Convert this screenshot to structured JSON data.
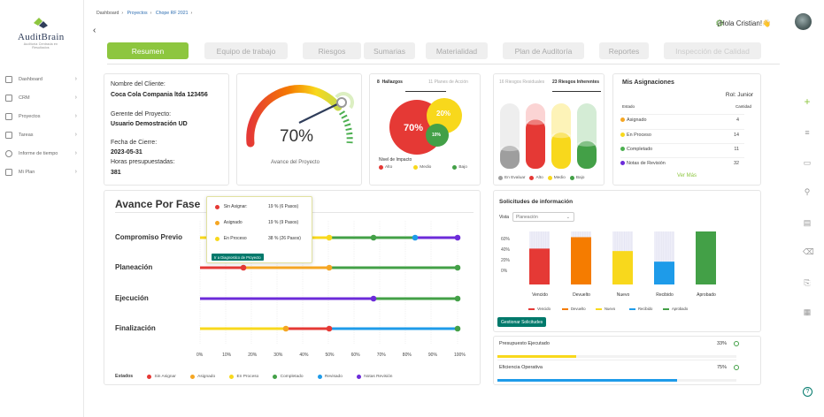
{
  "app": {
    "logo_name": "AuditBrain",
    "logo_tag": "Auditoría Centrada en Resultados"
  },
  "sidebar": {
    "items": [
      {
        "label": "Dashboard"
      },
      {
        "label": "CRM"
      },
      {
        "label": "Proyectos"
      },
      {
        "label": "Tareas"
      },
      {
        "label": "Informe de tiempo"
      },
      {
        "label": "Mi Plan"
      }
    ]
  },
  "breadcrumb": [
    "Dashboard",
    "Proyectos",
    "Chope RF 2021"
  ],
  "greeting": "¡Hola Cristian!👋",
  "tabs": [
    "Resumen",
    "Equipo de trabajo",
    "Riesgos",
    "Sumarias",
    "Materialidad",
    "Plan de Auditoría",
    "Reportes",
    "Inspección de Calidad"
  ],
  "project": {
    "client_label": "Nombre del Cliente:",
    "client": "Coca Cola Compania ltda 123456",
    "manager_label": "Gerente del Proyecto:",
    "manager": "Usuario Demostración UD",
    "close_label": "Fecha de Cierre:",
    "close": "2023-05-31",
    "hours_label": "Horas presupuestadas:",
    "hours": "381"
  },
  "gauge": {
    "value": "70%",
    "label": "Avance del Proyecto",
    "progress": 0.7
  },
  "hallazgos": {
    "count": "8",
    "tab": "Hallazgos",
    "count2": "11",
    "tab2": "Planes de Acción",
    "big": "70%",
    "mid": "20%",
    "small": "10%",
    "legend_title": "Nivel de Impacto",
    "legend": [
      "Alto",
      "Medio",
      "Bajo"
    ]
  },
  "riesgos": {
    "count": "16",
    "tab": "Riesgos Residuales",
    "count2": "23",
    "tab2": "Riesgos Inherentes",
    "legend": [
      "En Evaluar",
      "Alto",
      "Medio",
      "Bajo"
    ],
    "levels": [
      0.35,
      0.75,
      0.55,
      0.42
    ]
  },
  "asignaciones": {
    "title": "Mis Asignaciones",
    "rol": "Rol: Junior",
    "col_estado": "Estado",
    "col_cantidad": "Cantidad",
    "rows": [
      {
        "label": "Asignado",
        "n": "4",
        "color": "#f5a623"
      },
      {
        "label": "En Proceso",
        "n": "14",
        "color": "#f8d81c"
      },
      {
        "label": "Completado",
        "n": "11",
        "color": "#4caf50"
      },
      {
        "label": "Notas de Revisión",
        "n": "32",
        "color": "#6c2bd9"
      }
    ],
    "more": "Ver Más"
  },
  "fase": {
    "title": "Avance Por Fase",
    "rows": [
      "Compromiso Previo",
      "Planeación",
      "Ejecución",
      "Finalización"
    ],
    "xticks": [
      "0%",
      "10%",
      "20%",
      "30%",
      "40%",
      "50%",
      "60%",
      "70%",
      "80%",
      "90%",
      "100%"
    ],
    "estados_label": "Estados",
    "estados": [
      {
        "label": "Sin Asignar",
        "color": "#e53935"
      },
      {
        "label": "Asignado",
        "color": "#f5a623"
      },
      {
        "label": "En Proceso",
        "color": "#f8d81c"
      },
      {
        "label": "Completado",
        "color": "#43a047"
      },
      {
        "label": "Revisado",
        "color": "#1e9be9"
      },
      {
        "label": "Notas Revisión",
        "color": "#6c2bd9"
      }
    ]
  },
  "tooltip": {
    "rows": [
      {
        "label": "Sin Asignar:",
        "value": "19 % (6 Pasos)",
        "color": "#e53935"
      },
      {
        "label": "Asignado",
        "value": "19 % (9 Pasos)",
        "color": "#f5a623"
      },
      {
        "label": "En Proceso",
        "value": "38 % (26 Pasos)",
        "color": "#f8d81c"
      }
    ],
    "button": "Ir a Diagnostico de Proyecto"
  },
  "solicitudes": {
    "title": "Solicitudes de información",
    "vista_label": "Vista",
    "vista_value": "Planeación",
    "yticks": [
      "60%",
      "40%",
      "20%",
      "0%"
    ],
    "button": "Gestionar Solicitudes"
  },
  "chart_data": {
    "type": "bar",
    "categories": [
      "Vencido",
      "Devuelto",
      "Nuevo",
      "Recibido",
      "Aprobado"
    ],
    "values": [
      44,
      58,
      41,
      28,
      65
    ],
    "ylim": [
      0,
      65
    ],
    "colors": [
      "#e53935",
      "#f57c00",
      "#f8d81c",
      "#1e9be9",
      "#43a047"
    ]
  },
  "budget": {
    "label": "Presupuesto Ejecutado",
    "value": "33%",
    "progress": 0.33
  },
  "efficiency": {
    "label": "Eficiencia Operativa",
    "value": "75%",
    "progress": 0.75
  }
}
